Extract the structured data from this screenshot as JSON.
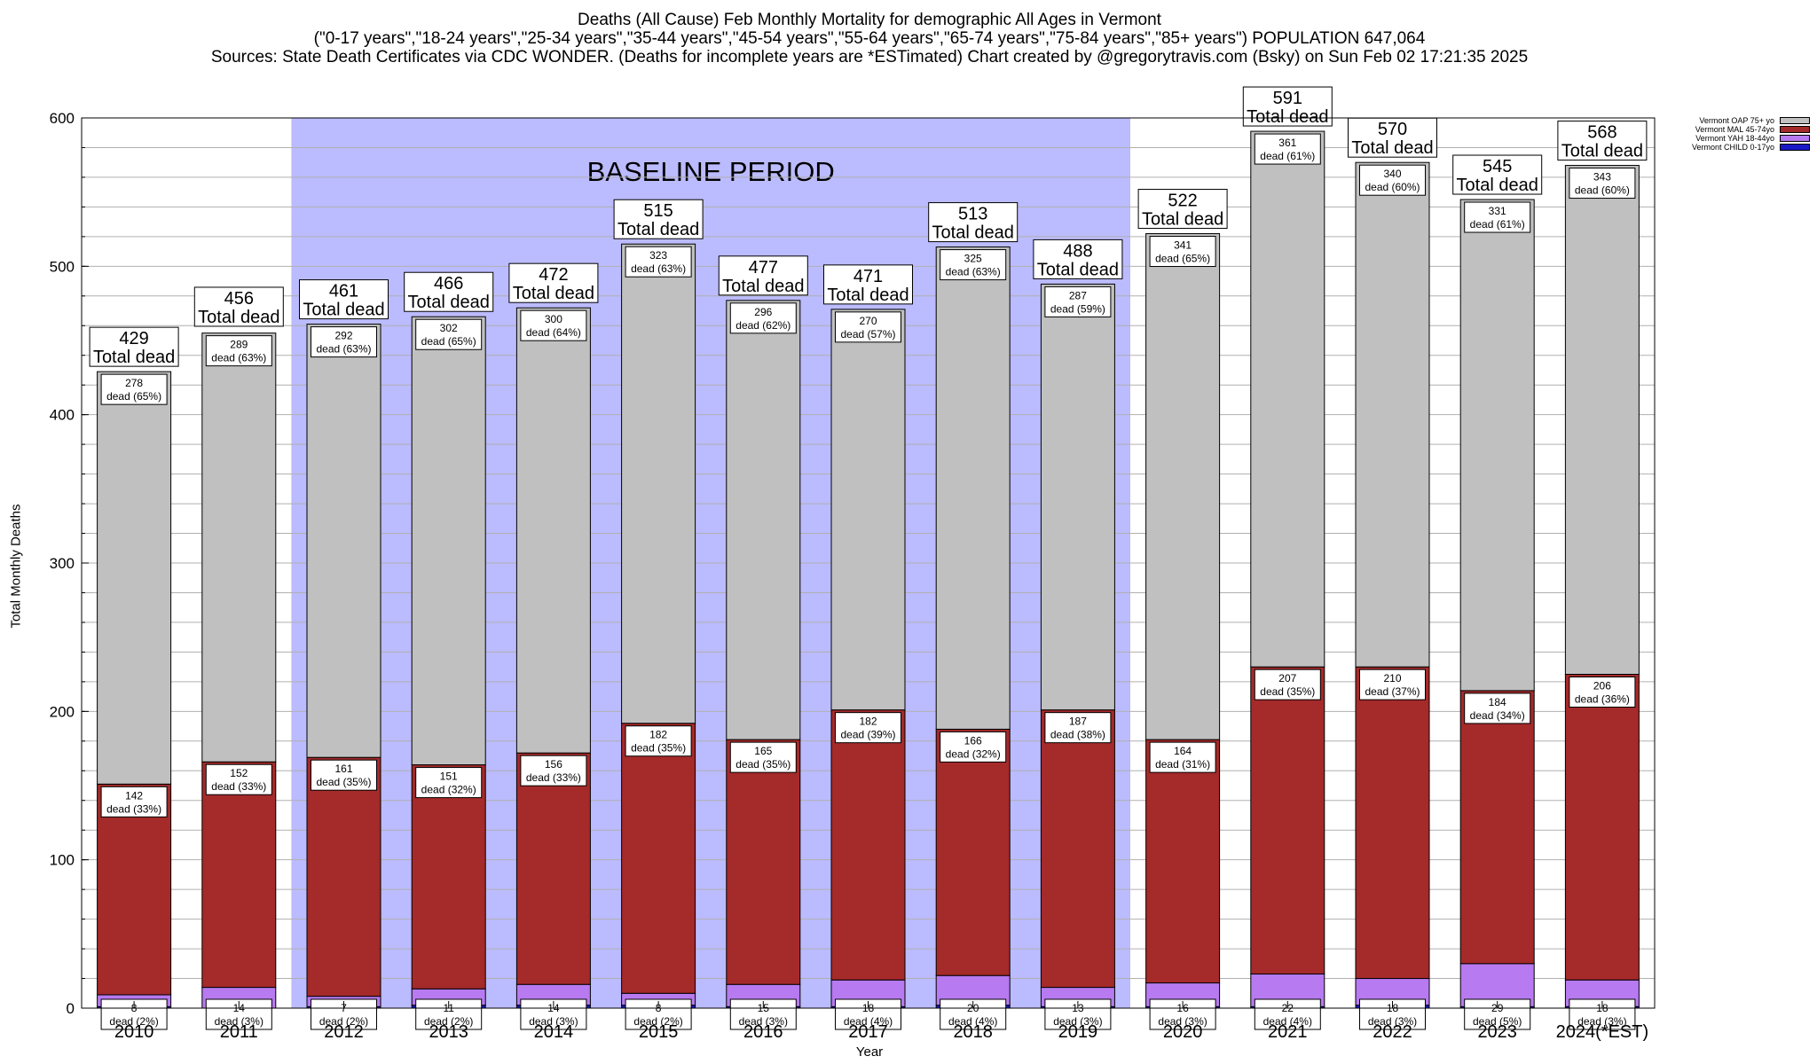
{
  "header": {
    "line1": "Deaths (All Cause) Feb Monthly Mortality for demographic All Ages in Vermont",
    "line2": "(\"0-17 years\",\"18-24 years\",\"25-34 years\",\"35-44 years\",\"45-54 years\",\"55-64 years\",\"65-74 years\",\"75-84 years\",\"85+ years\") POPULATION 647,064",
    "line3": "Sources: State Death Certificates via CDC WONDER. (Deaths for incomplete years are *ESTimated)                  Chart created by @gregorytravis.com (Bsky) on Sun Feb 02 17:21:35 2025"
  },
  "chart_data": {
    "type": "bar",
    "stacked": true,
    "categories": [
      "2010",
      "2011",
      "2012",
      "2013",
      "2014",
      "2015",
      "2016",
      "2017",
      "2018",
      "2019",
      "2020",
      "2021",
      "2022",
      "2023",
      "2024(*EST)"
    ],
    "totals": [
      429,
      456,
      461,
      466,
      472,
      515,
      477,
      471,
      513,
      488,
      522,
      591,
      570,
      545,
      568
    ],
    "total_label_suffix": "Total dead",
    "series": [
      {
        "name": "Vermont CHILD 0-17yo",
        "color": "#1a1ac8",
        "values": [
          1,
          0,
          1,
          2,
          2,
          2,
          1,
          1,
          2,
          1,
          1,
          1,
          2,
          1,
          1
        ],
        "labels": null
      },
      {
        "name": "Vermont YAH 18-44yo",
        "color": "#b77af0",
        "values": [
          8,
          14,
          7,
          11,
          14,
          8,
          15,
          18,
          20,
          13,
          16,
          22,
          18,
          29,
          18
        ],
        "labels": [
          "8\ndead (2%)",
          "14\ndead (3%)",
          "7\ndead (2%)",
          "11\ndead (2%)",
          "14\ndead (3%)",
          "8\ndead (2%)",
          "15\ndead (3%)",
          "18\ndead (4%)",
          "20\ndead (4%)",
          "13\ndead (3%)",
          "16\ndead (3%)",
          "22\ndead (4%)",
          "18\ndead (3%)",
          "29\ndead (5%)",
          "18\ndead (3%)"
        ]
      },
      {
        "name": "Vermont MAL 45-74yo",
        "color": "#a52a2a",
        "values": [
          142,
          152,
          161,
          151,
          156,
          182,
          165,
          182,
          166,
          187,
          164,
          207,
          210,
          184,
          206
        ],
        "labels": [
          "142\ndead (33%)",
          "152\ndead (33%)",
          "161\ndead (35%)",
          "151\ndead (32%)",
          "156\ndead (33%)",
          "182\ndead (35%)",
          "165\ndead (35%)",
          "182\ndead (39%)",
          "166\ndead (32%)",
          "187\ndead (38%)",
          "164\ndead (31%)",
          "207\ndead (35%)",
          "210\ndead (37%)",
          "184\ndead (34%)",
          "206\ndead (36%)"
        ]
      },
      {
        "name": "Vermont OAP 75+ yo",
        "color": "#c0c0c0",
        "values": [
          278,
          289,
          292,
          302,
          300,
          323,
          296,
          270,
          325,
          287,
          341,
          361,
          340,
          331,
          343
        ],
        "labels": [
          "278\ndead (65%)",
          "289\ndead (63%)",
          "292\ndead (63%)",
          "302\ndead (65%)",
          "300\ndead (64%)",
          "323\ndead (63%)",
          "296\ndead (62%)",
          "270\ndead (57%)",
          "325\ndead (63%)",
          "287\ndead (59%)",
          "341\ndead (65%)",
          "361\ndead (61%)",
          "340\ndead (60%)",
          "331\ndead (61%)",
          "343\ndead (60%)"
        ]
      }
    ],
    "legend_order": [
      "Vermont OAP 75+ yo",
      "Vermont MAL 45-74yo",
      "Vermont YAH 18-44yo",
      "Vermont CHILD 0-17yo"
    ],
    "baseline": {
      "label": "BASELINE PERIOD",
      "from": "2012",
      "to": "2019",
      "color": "#bbbbff"
    },
    "xlabel": "Year",
    "ylabel": "Total Monthly Deaths",
    "ylim": [
      0,
      600
    ],
    "yticks": [
      0,
      100,
      200,
      300,
      400,
      500,
      600
    ],
    "grid": true,
    "legend_position": "top-right"
  }
}
